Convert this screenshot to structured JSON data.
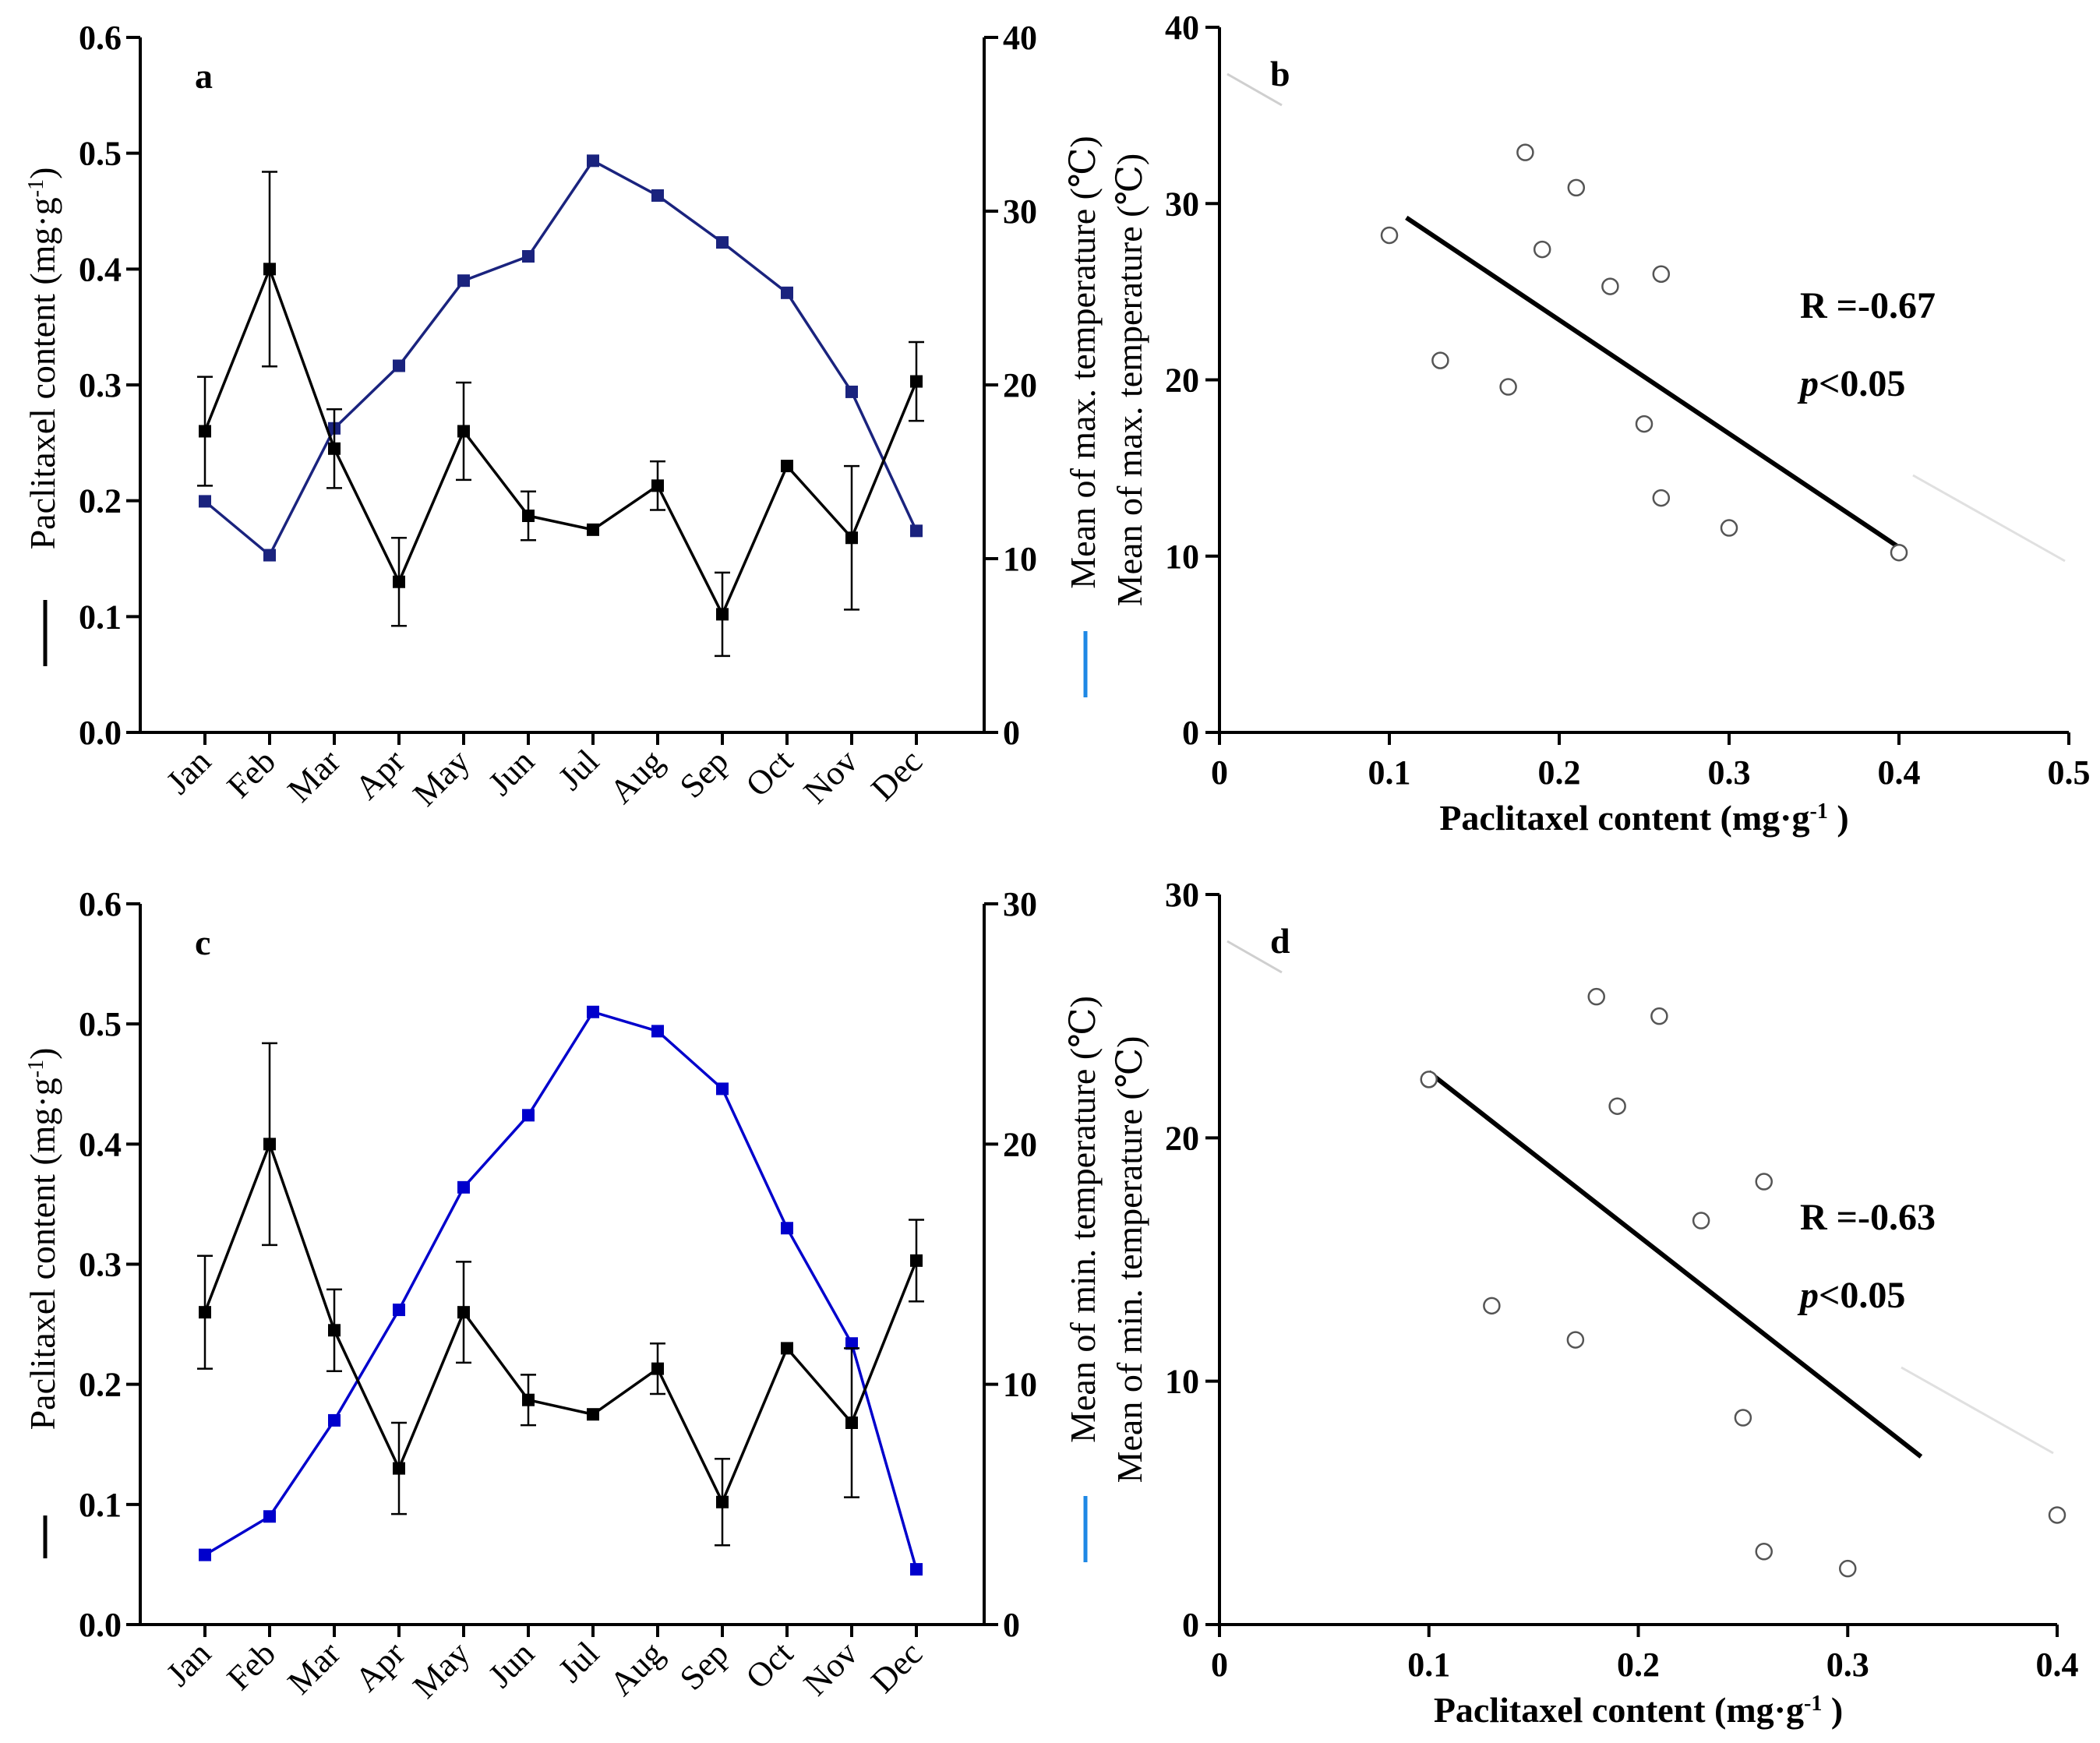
{
  "chart_data": [
    {
      "panel": "a",
      "type": "line",
      "categories": [
        "Jan",
        "Feb",
        "Mar",
        "Apr",
        "May",
        "Jun",
        "Jul",
        "Aug",
        "Sep",
        "Oct",
        "Nov",
        "Dec"
      ],
      "ylabel": "Paclitaxel content (mg·g-1)",
      "ylabel_base": "Paclitaxel content (mg·g",
      "ylabel_sup": "-1",
      "ylabel_close": ")",
      "y2label": "Mean of max. temperature (℃)",
      "ylim": [
        0,
        0.6
      ],
      "y2lim": [
        0,
        40
      ],
      "yticks": [
        "0.0",
        "0.1",
        "0.2",
        "0.3",
        "0.4",
        "0.5",
        "0.6"
      ],
      "y2ticks": [
        "0",
        "10",
        "20",
        "30",
        "40"
      ],
      "series": [
        {
          "axis": "left",
          "color": "#000000",
          "values": [
            0.26,
            0.4,
            0.245,
            0.13,
            0.26,
            0.187,
            0.175,
            0.213,
            0.102,
            0.23,
            0.168,
            0.303
          ],
          "error": [
            0.047,
            0.084,
            0.034,
            0.038,
            0.042,
            0.021,
            0,
            0.021,
            0.036,
            0,
            0.062,
            0.034
          ]
        },
        {
          "axis": "right",
          "color": "#1a237e",
          "values": [
            13.3,
            10.2,
            17.5,
            21.1,
            26.0,
            27.4,
            32.9,
            30.9,
            28.2,
            25.3,
            19.6,
            11.6
          ]
        }
      ]
    },
    {
      "panel": "b",
      "type": "scatter",
      "xlabel": "Paclitaxel content (mg·g-1 )",
      "xlabel_base": "Paclitaxel content (mg·g",
      "xlabel_sup": "-1",
      "xlabel_close": " )",
      "ylabel": "Mean of max. temperature (℃)",
      "xlim": [
        0,
        0.5
      ],
      "ylim": [
        0,
        40
      ],
      "xticks": [
        "0",
        "0.1",
        "0.2",
        "0.3",
        "0.4",
        "0.5"
      ],
      "yticks": [
        "0",
        "10",
        "20",
        "30",
        "40"
      ],
      "points": [
        {
          "x": 0.1,
          "y": 28.2
        },
        {
          "x": 0.13,
          "y": 21.1
        },
        {
          "x": 0.17,
          "y": 19.6
        },
        {
          "x": 0.18,
          "y": 32.9
        },
        {
          "x": 0.19,
          "y": 27.4
        },
        {
          "x": 0.21,
          "y": 30.9
        },
        {
          "x": 0.23,
          "y": 25.3
        },
        {
          "x": 0.25,
          "y": 17.5
        },
        {
          "x": 0.26,
          "y": 26.0
        },
        {
          "x": 0.26,
          "y": 13.3
        },
        {
          "x": 0.3,
          "y": 11.6
        },
        {
          "x": 0.4,
          "y": 10.2
        }
      ],
      "fit": [
        {
          "x": 0.11,
          "y": 29.2
        },
        {
          "x": 0.4,
          "y": 10.5
        }
      ],
      "stat_r": "R =-0.67",
      "stat_p_italic": "p",
      "stat_p_rest": "<0.05"
    },
    {
      "panel": "c",
      "type": "line",
      "categories": [
        "Jan",
        "Feb",
        "Mar",
        "Apr",
        "May",
        "Jun",
        "Jul",
        "Aug",
        "Sep",
        "Oct",
        "Nov",
        "Dec"
      ],
      "ylabel": "Paclitaxel content (mg·g-1)",
      "ylabel_base": "Paclitaxel content (mg·g",
      "ylabel_sup": "-1",
      "ylabel_close": ")",
      "y2label": "Mean of min. temperature (℃)",
      "ylim": [
        0,
        0.6
      ],
      "y2lim": [
        0,
        30
      ],
      "yticks": [
        "0.0",
        "0.1",
        "0.2",
        "0.3",
        "0.4",
        "0.5",
        "0.6"
      ],
      "y2ticks": [
        "0",
        "10",
        "20",
        "30"
      ],
      "series": [
        {
          "axis": "left",
          "color": "#000000",
          "values": [
            0.26,
            0.4,
            0.245,
            0.13,
            0.26,
            0.187,
            0.175,
            0.213,
            0.102,
            0.23,
            0.168,
            0.303
          ],
          "error": [
            0.047,
            0.084,
            0.034,
            0.038,
            0.042,
            0.021,
            0,
            0.021,
            0.036,
            0,
            0.062,
            0.034
          ]
        },
        {
          "axis": "right",
          "color": "#0000cc",
          "values": [
            2.9,
            4.5,
            8.5,
            13.1,
            18.2,
            21.2,
            25.5,
            24.7,
            22.3,
            16.5,
            11.7,
            2.3
          ]
        }
      ]
    },
    {
      "panel": "d",
      "type": "scatter",
      "xlabel": "Paclitaxel content (mg·g-1 )",
      "xlabel_base": "Paclitaxel content (mg·g",
      "xlabel_sup": "-1",
      "xlabel_close": " )",
      "ylabel": "Mean of min. temperature (℃)",
      "xlim": [
        0,
        0.4
      ],
      "ylim": [
        0,
        30
      ],
      "xticks": [
        "0",
        "0.1",
        "0.2",
        "0.3",
        "0.4"
      ],
      "yticks": [
        "0",
        "10",
        "20",
        "30"
      ],
      "points": [
        {
          "x": 0.1,
          "y": 22.4
        },
        {
          "x": 0.13,
          "y": 13.1
        },
        {
          "x": 0.17,
          "y": 11.7
        },
        {
          "x": 0.18,
          "y": 25.8
        },
        {
          "x": 0.19,
          "y": 21.3
        },
        {
          "x": 0.21,
          "y": 25.0
        },
        {
          "x": 0.23,
          "y": 16.6
        },
        {
          "x": 0.25,
          "y": 8.5
        },
        {
          "x": 0.26,
          "y": 18.2
        },
        {
          "x": 0.26,
          "y": 3.0
        },
        {
          "x": 0.3,
          "y": 2.3
        },
        {
          "x": 0.4,
          "y": 4.5
        }
      ],
      "fit": [
        {
          "x": 0.1,
          "y": 22.7
        },
        {
          "x": 0.335,
          "y": 6.9
        }
      ],
      "stat_r": "R =-0.63",
      "stat_p_italic": "p",
      "stat_p_rest": "<0.05"
    }
  ]
}
